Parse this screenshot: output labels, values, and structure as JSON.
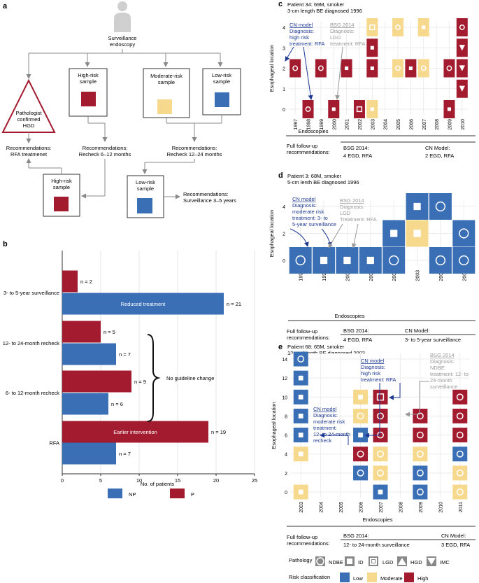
{
  "colors": {
    "low": "#3a6fb6",
    "moderate": "#f7d98e",
    "high": "#a31b2e",
    "grey": "#888888",
    "cn": "#1f3a93",
    "bsg": "#999999"
  },
  "panel_labels": {
    "a": "a",
    "b": "b",
    "c": "c",
    "d": "d",
    "e": "e"
  },
  "panel_a": {
    "surveillance": "Surveillance",
    "endoscopy": "endoscopy",
    "path1": "Pathologist",
    "path2": "confirmed",
    "path3": "HGD",
    "hr1": "High-risk",
    "hr2": "sample",
    "mr1": "Moderate-risk",
    "mr2": "sample",
    "lr1": "Low-risk",
    "lr2": "sample",
    "rec_rfa1": "Recommendations:",
    "rec_rfa2": "RFA treatmenet",
    "rec_hr1": "Recommendations:",
    "rec_hr2": "Recheck 6–12 months",
    "rec_ml1": "Recommendations:",
    "rec_ml2": "Recheck 12–24 months",
    "b_hr1": "High-risk",
    "b_hr2": "sample",
    "b_lr1": "Low-risk",
    "b_lr2": "sample",
    "rec_s1": "Recommendations:",
    "rec_s2": "Surveillance 3–5 years"
  },
  "chart_data": [
    {
      "type": "bar",
      "orientation": "horizontal",
      "categories": [
        "3- to 5-year surveillance",
        "12- to 24-month  recheck",
        "6- to 12-month recheck",
        "RFA"
      ],
      "series": [
        {
          "name": "P",
          "values": [
            2,
            5,
            9,
            19
          ]
        },
        {
          "name": "NP",
          "values": [
            21,
            7,
            6,
            7
          ]
        }
      ],
      "labels": {
        "P": [
          "n = 2",
          "n = 5",
          "n = 9",
          "n = 19"
        ],
        "NP": [
          "n = 21",
          "n = 7",
          "n = 6",
          "n = 7"
        ]
      },
      "inbar": {
        "reduced": "Reduced treatment",
        "earlier": "Earlier intervention"
      },
      "brace_label": "No guideline change",
      "xlabel": "No. of patients",
      "xlim": [
        0,
        25
      ],
      "xticks": [
        "0",
        "5",
        "10",
        "15",
        "20",
        "25"
      ],
      "legend": [
        "NP",
        "P"
      ]
    },
    {
      "type": "scatter",
      "title1": "Patient 34: 69M, smoker",
      "title2": "3-cm length BE diagnosed 1996",
      "x": [
        "1997",
        "1998",
        "1999",
        "2000",
        "2001",
        "2002",
        "2003",
        "2004",
        "2005",
        "2006",
        "2007",
        "2008",
        "2009",
        "2010"
      ],
      "yticks": [
        0,
        1,
        2,
        3,
        4
      ],
      "ylabel": "Esophageal location",
      "xlabel": "Endoscopies",
      "points": [
        [
          "1997",
          2,
          "high",
          "NDBE"
        ],
        [
          "1998",
          0,
          "high",
          "NDBE"
        ],
        [
          "1999",
          2,
          "high",
          "NDBE"
        ],
        [
          "2000",
          0,
          "high",
          "ID"
        ],
        [
          "2001",
          2,
          "high",
          "ID"
        ],
        [
          "2002",
          0,
          "high",
          "LGD"
        ],
        [
          "2003",
          4,
          "moderate",
          "LGD"
        ],
        [
          "2003",
          3,
          "high",
          "ID"
        ],
        [
          "2003",
          2,
          "high",
          "ID"
        ],
        [
          "2003",
          0,
          "moderate",
          "ID"
        ],
        [
          "2005",
          4,
          "moderate",
          "NDBE"
        ],
        [
          "2005",
          2,
          "moderate",
          "NDBE"
        ],
        [
          "2006",
          2,
          "high",
          "ID"
        ],
        [
          "2007",
          4,
          "moderate",
          "ID"
        ],
        [
          "2007",
          2,
          "moderate",
          "NDBE"
        ],
        [
          "2009",
          2,
          "high",
          "NDBE"
        ],
        [
          "2009",
          0,
          "high",
          "ID"
        ],
        [
          "2010",
          4,
          "high",
          "NDBE"
        ],
        [
          "2010",
          3,
          "high",
          "IMC"
        ],
        [
          "2010",
          2,
          "high",
          "IMC"
        ],
        [
          "2010",
          1,
          "high",
          "IMC"
        ]
      ],
      "cn": [
        "CN model",
        "Diagnosis:",
        "high risk",
        "treatment: RFA"
      ],
      "bsg": [
        "BSG 2014",
        "Diagnosis:",
        "LGD",
        "treatment: RFA"
      ],
      "fu1": "Full follow-up",
      "fu2": "recommendations:",
      "bsg_rec": [
        "BSG 2014:",
        "4 EGD, RFA"
      ],
      "cn_rec": [
        "CN Model:",
        "2 EGD, RFA"
      ]
    },
    {
      "type": "scatter",
      "title1": "Patient 3: 68M, smoker",
      "title2": "5-cm lenth BE diagnosed 1996",
      "x": [
        "1998",
        "1999",
        "2000",
        "2001",
        "2002",
        "2003",
        "2004",
        "2005"
      ],
      "yticks": [
        0,
        2,
        4
      ],
      "ylabel": "Esophageal location",
      "xlabel": "Endoscopies",
      "points": [
        [
          "1998",
          0,
          "low",
          "NDBE"
        ],
        [
          "1999",
          0,
          "low",
          "ID"
        ],
        [
          "2000",
          0,
          "low",
          "ID"
        ],
        [
          "2001",
          0,
          "low",
          "ID"
        ],
        [
          "2002",
          2,
          "low",
          "ID"
        ],
        [
          "2002",
          0,
          "low",
          "NDBE"
        ],
        [
          "2003",
          4,
          "low",
          "ID"
        ],
        [
          "2003",
          2,
          "moderate",
          "ID"
        ],
        [
          "2004",
          4,
          "low",
          "NDBE"
        ],
        [
          "2004",
          0,
          "low",
          "NDBE"
        ],
        [
          "2005",
          2,
          "low",
          "NDBE"
        ],
        [
          "2005",
          0,
          "low",
          "NDBE"
        ]
      ],
      "cn": [
        "CN model",
        "Diagnosis:",
        "moderate risk",
        "treatment: 3- to",
        "5-year surveillance"
      ],
      "bsg": [
        "BSG 2014",
        "Diagnosis:",
        "LGD",
        "Treatment: RFA"
      ],
      "fu1": "Full follow-up",
      "fu2": "recommendations:",
      "bsg_rec": [
        "BSG 2014:",
        "4 EGD, RFA"
      ],
      "cn_rec": [
        "CN Model:",
        "3- to 5-year surveillance"
      ]
    },
    {
      "type": "scatter",
      "title1": "Patient 68: 65M, smoker",
      "title2": "13-cm length BE diagnosed 2003",
      "x": [
        "2003",
        "2004",
        "2005",
        "2006",
        "2007",
        "2008",
        "2009",
        "2010",
        "2011"
      ],
      "yticks": [
        0,
        2,
        4,
        6,
        8,
        10,
        12,
        14
      ],
      "ylabel": "Esophageal location",
      "xlabel": "Endoscopies",
      "points": [
        [
          "2003",
          14,
          "low",
          "NDBE"
        ],
        [
          "2003",
          12,
          "low",
          "ID"
        ],
        [
          "2003",
          10,
          "low",
          "ID"
        ],
        [
          "2003",
          8,
          "low",
          "ID"
        ],
        [
          "2003",
          6,
          "low",
          "ID"
        ],
        [
          "2003",
          4,
          "moderate",
          "ID"
        ],
        [
          "2003",
          0,
          "moderate",
          "ID"
        ],
        [
          "2006",
          10,
          "moderate",
          "ID"
        ],
        [
          "2006",
          8,
          "moderate",
          "NDBE"
        ],
        [
          "2006",
          6,
          "low",
          "ID"
        ],
        [
          "2006",
          4,
          "high",
          "NDBE"
        ],
        [
          "2006",
          2,
          "low",
          "NDBE"
        ],
        [
          "2007",
          10,
          "high",
          "LGD"
        ],
        [
          "2007",
          8,
          "high",
          "NDBE"
        ],
        [
          "2007",
          6,
          "high",
          "NDBE"
        ],
        [
          "2007",
          4,
          "moderate",
          "NDBE"
        ],
        [
          "2007",
          2,
          "moderate",
          "NDBE"
        ],
        [
          "2007",
          0,
          "low",
          "ID"
        ],
        [
          "2009",
          8,
          "high",
          "NDBE"
        ],
        [
          "2009",
          6,
          "high",
          "NDBE"
        ],
        [
          "2009",
          4,
          "moderate",
          "NDBE"
        ],
        [
          "2009",
          2,
          "low",
          "NDBE"
        ],
        [
          "2009",
          0,
          "low",
          "NDBE"
        ],
        [
          "2011",
          10,
          "high",
          "NDBE"
        ],
        [
          "2011",
          8,
          "high",
          "NDBE"
        ],
        [
          "2011",
          6,
          "high",
          "NDBE"
        ],
        [
          "2011",
          4,
          "low",
          "NDBE"
        ],
        [
          "2011",
          2,
          "moderate",
          "NDBE"
        ],
        [
          "2011",
          0,
          "moderate",
          "NDBE"
        ]
      ],
      "cn1": [
        "CN model",
        "Diagnosis:",
        "moderate risk",
        "treatment:",
        "12- to 24-month",
        "recheck"
      ],
      "cn2": [
        "CN model",
        "Diagnosis:",
        "high risk",
        "treatment: RFA"
      ],
      "bsg": [
        "BSG 2014",
        "Diagnosis:",
        "NDBE",
        "treatment: 12- to",
        "24-month",
        "surveillance"
      ],
      "fu1": "Full follow-up",
      "fu2": "recommendations:",
      "bsg_rec": [
        "BSG 2014:",
        "12- to 24-month surveillance"
      ],
      "cn_rec": [
        "CN Model:",
        "3 EGD, RFA"
      ]
    }
  ],
  "legend": {
    "pathology": "Pathology",
    "ndbe": "NDBE",
    "id": "ID",
    "lgd": "LGD",
    "hgd": "HGD",
    "imc": "IMC",
    "risk": "Risk classification",
    "low": "Low",
    "moderate": "Moderate",
    "high": "High"
  }
}
